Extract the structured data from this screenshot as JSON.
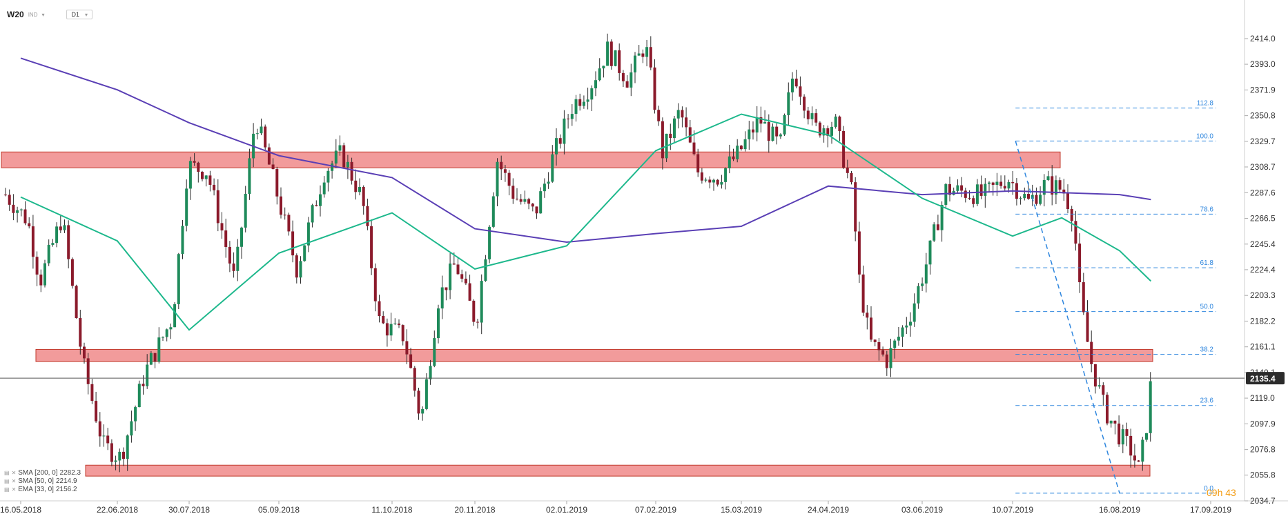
{
  "toolbar": {
    "symbol": "W20",
    "type": "IND",
    "timeframe": "D1"
  },
  "legend": [
    {
      "label": "SMA [200, 0]",
      "value": "2282.3"
    },
    {
      "label": "SMA [50, 0]",
      "value": "2214.9"
    },
    {
      "label": "EMA [33, 0]",
      "value": "2156.2"
    }
  ],
  "countdown": "09h 43",
  "colors": {
    "bull": "#1e8a5a",
    "bear": "#8b1a2b",
    "wick": "#2b2b2b",
    "sma200": "#5a3fb5",
    "sma50": "#1db88c",
    "zone_fill": "#f08a8a",
    "zone_stroke": "#c0392b",
    "fib": "#2e86de",
    "price_tag": "#2b2b2b",
    "current_line": "#555555"
  },
  "chart_data": {
    "type": "candlestick",
    "instrument": "W20",
    "timeframe": "D1",
    "price_axis": {
      "ticks": [
        2414.0,
        2393.0,
        2371.9,
        2350.8,
        2329.7,
        2308.7,
        2287.6,
        2266.5,
        2245.4,
        2224.4,
        2203.3,
        2182.2,
        2161.1,
        2140.1,
        2119.0,
        2097.9,
        2076.8,
        2055.8,
        2034.7
      ],
      "range": [
        2030,
        2428
      ]
    },
    "date_axis": {
      "ticks": [
        "16.05.2018",
        "22.06.2018",
        "30.07.2018",
        "05.09.2018",
        "11.10.2018",
        "20.11.2018",
        "02.01.2019",
        "07.02.2019",
        "15.03.2019",
        "24.04.2019",
        "03.06.2019",
        "10.07.2019",
        "16.08.2019",
        "17.09.2019"
      ]
    },
    "current_price": 2135.4,
    "resistance_support_zones": [
      {
        "low": 2308,
        "high": 2321
      },
      {
        "low": 2149,
        "high": 2159
      },
      {
        "low": 2055,
        "high": 2064
      }
    ],
    "fibonacci": {
      "levels": [
        {
          "label": "112.8",
          "price": 2357.0
        },
        {
          "label": "100.0",
          "price": 2330.0
        },
        {
          "label": "78.6",
          "price": 2270.0
        },
        {
          "label": "61.8",
          "price": 2226.0
        },
        {
          "label": "50.0",
          "price": 2190.0
        },
        {
          "label": "38.2",
          "price": 2155.0
        },
        {
          "label": "23.6",
          "price": 2113.0
        },
        {
          "label": "0.0",
          "price": 2041.0
        }
      ],
      "start_date": "11.07.2019",
      "end_date": "16.08.2019",
      "trend_from": {
        "date": "11.07.2019",
        "price": 2330.0
      },
      "trend_to": {
        "date": "16.08.2019",
        "price": 2041.0
      }
    },
    "series": [
      {
        "name": "SMA [200, 0]",
        "indicator": "sma200",
        "points": [
          [
            "16.05.2018",
            2398
          ],
          [
            "22.06.2018",
            2372
          ],
          [
            "30.07.2018",
            2345
          ],
          [
            "05.09.2018",
            2318
          ],
          [
            "11.10.2018",
            2300
          ],
          [
            "20.11.2018",
            2258
          ],
          [
            "02.01.2019",
            2247
          ],
          [
            "07.02.2019",
            2254
          ],
          [
            "15.03.2019",
            2260
          ],
          [
            "24.04.2019",
            2293
          ],
          [
            "03.06.2019",
            2286
          ],
          [
            "10.07.2019",
            2289
          ],
          [
            "16.08.2019",
            2286
          ],
          [
            "27.08.2019",
            2282
          ]
        ]
      },
      {
        "name": "SMA [50, 0]",
        "indicator": "sma50",
        "points": [
          [
            "16.05.2018",
            2284
          ],
          [
            "22.06.2018",
            2248
          ],
          [
            "30.07.2018",
            2175
          ],
          [
            "05.09.2018",
            2238
          ],
          [
            "11.10.2018",
            2271
          ],
          [
            "20.11.2018",
            2225
          ],
          [
            "02.01.2019",
            2244
          ],
          [
            "07.02.2019",
            2322
          ],
          [
            "15.03.2019",
            2352
          ],
          [
            "24.04.2019",
            2335
          ],
          [
            "03.06.2019",
            2283
          ],
          [
            "10.07.2019",
            2252
          ],
          [
            "27.07.2019",
            2267
          ],
          [
            "16.08.2019",
            2240
          ],
          [
            "27.08.2019",
            2215
          ]
        ]
      }
    ]
  }
}
